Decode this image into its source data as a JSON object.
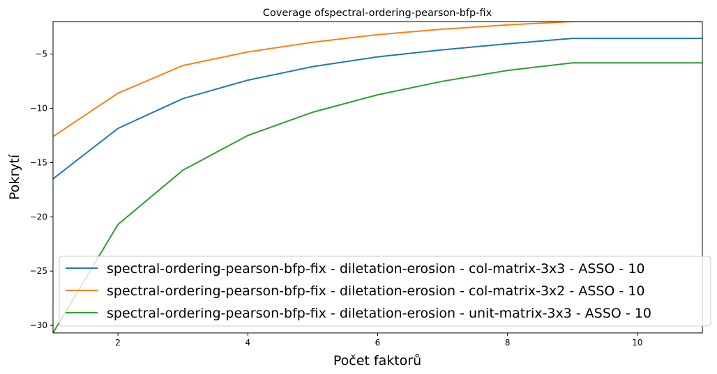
{
  "chart_data": {
    "type": "line",
    "title": "Coverage ofspectral-ordering-pearson-bfp-fix",
    "xlabel": "Počet faktorů",
    "ylabel": "Pokrytí",
    "xlim": [
      1,
      11
    ],
    "ylim": [
      -30.7,
      -2.0
    ],
    "xticks": [
      2,
      4,
      6,
      8,
      10
    ],
    "yticks": [
      -30,
      -25,
      -20,
      -15,
      -10,
      -5
    ],
    "ytick_labels": [
      "−30",
      "−25",
      "−20",
      "−15",
      "−10",
      "−5"
    ],
    "x": [
      1,
      2,
      3,
      4,
      5,
      6,
      7,
      8,
      9,
      10,
      11
    ],
    "legend_position": "lower-right",
    "series": [
      {
        "name": "spectral-ordering-pearson-bfp-fix - diletation-erosion - col-matrix-3x3 - ASSO - 10",
        "color": "#1f77b4",
        "values": [
          -16.5,
          -11.85,
          -9.1,
          -7.4,
          -6.15,
          -5.25,
          -4.6,
          -4.05,
          -3.55,
          -3.55,
          -3.55
        ]
      },
      {
        "name": "spectral-ordering-pearson-bfp-fix - diletation-erosion - col-matrix-3x2 - ASSO - 10",
        "color": "#ff7f0e",
        "values": [
          -12.6,
          -8.6,
          -6.05,
          -4.8,
          -3.9,
          -3.2,
          -2.7,
          -2.3,
          -2.0,
          -2.0,
          -2.0
        ]
      },
      {
        "name": "spectral-ordering-pearson-bfp-fix - diletation-erosion - unit-matrix-3x3 - ASSO - 10",
        "color": "#2ca02c",
        "values": [
          -30.7,
          -20.7,
          -15.7,
          -12.5,
          -10.35,
          -8.75,
          -7.5,
          -6.5,
          -5.8,
          -5.8,
          -5.8
        ]
      }
    ]
  }
}
